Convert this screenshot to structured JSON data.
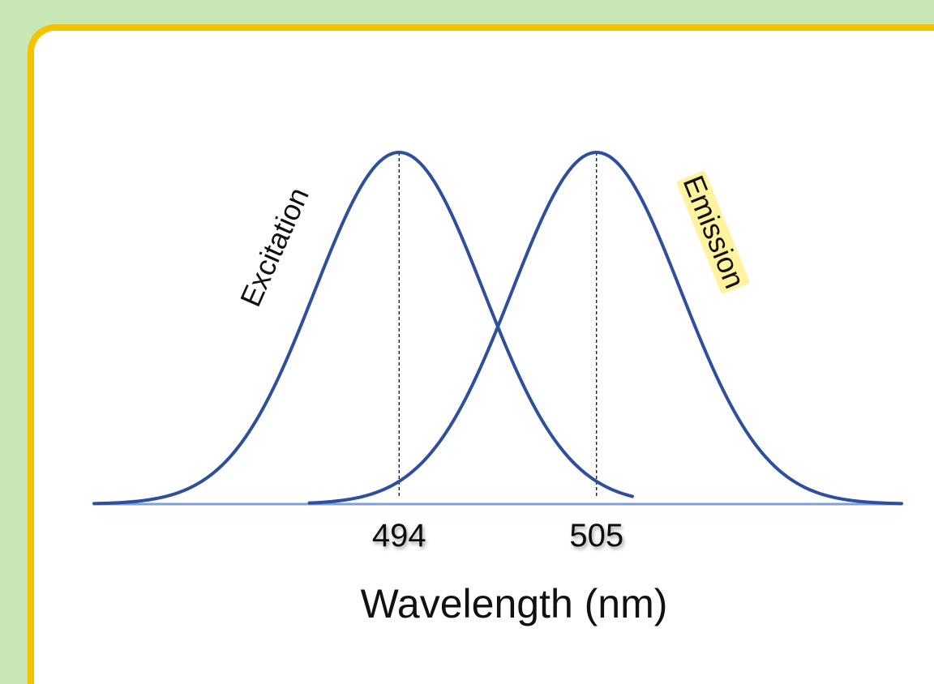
{
  "chart_data": {
    "type": "line",
    "xlabel": "Wavelength (nm)",
    "ylabel": "",
    "title": "",
    "grid": false,
    "xlim": [
      477,
      522
    ],
    "ylim": [
      0,
      1
    ],
    "tick_labels": [
      "494",
      "505"
    ],
    "peaks": [
      494,
      505
    ],
    "series": [
      {
        "name": "Excitation",
        "peak": 494,
        "sigma": 4.7,
        "x_range": [
          477,
          507
        ],
        "color": "#2e4f9b"
      },
      {
        "name": "Emission",
        "peak": 505,
        "sigma": 4.7,
        "x_range": [
          489,
          522
        ],
        "color": "#2e4f9b",
        "label_highlight": "#fff3a0"
      }
    ],
    "baseline_color": "#7f9fd6"
  }
}
